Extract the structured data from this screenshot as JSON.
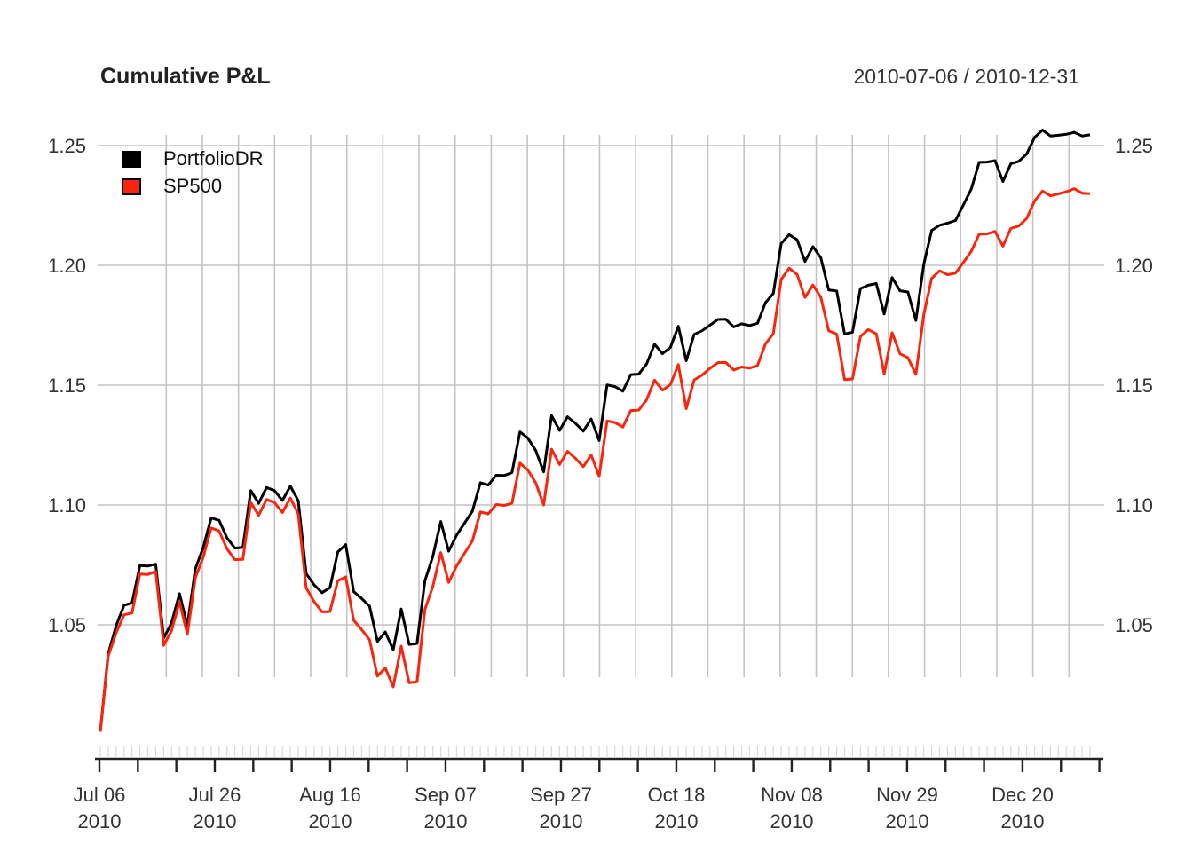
{
  "header": {
    "title": "Cumulative P&L",
    "date_range": "2010-07-06 / 2010-12-31"
  },
  "legend": [
    {
      "label": "PortfolioDR",
      "color": "#000000"
    },
    {
      "label": "SP500",
      "color": "#fa250c"
    }
  ],
  "y_axis": {
    "tick_labels": [
      "1.25",
      "1.20",
      "1.15",
      "1.10",
      "1.05"
    ],
    "tick_values": [
      1.25,
      1.2,
      1.15,
      1.1,
      1.05
    ]
  },
  "x_axis": {
    "labels_line1": [
      "Jul 06",
      "Jul 26",
      "Aug 16",
      "Sep 07",
      "Sep 27",
      "Oct 18",
      "Nov 08",
      "Nov 29",
      "Dec 20"
    ],
    "labels_line2": [
      "2010",
      "2010",
      "2010",
      "2010",
      "2010",
      "2010",
      "2010",
      "2010",
      "2010"
    ]
  },
  "chart_data": {
    "type": "line",
    "title": "Cumulative P&L",
    "subtitle": "2010-07-06 / 2010-12-31",
    "grid": true,
    "legend_position": "top-left",
    "ylim": [
      0.994,
      1.258
    ],
    "y_ticks": [
      1.05,
      1.1,
      1.15,
      1.2,
      1.25
    ],
    "x_label_positions": [
      0,
      14,
      29,
      44,
      58,
      73,
      88,
      103,
      117
    ],
    "x": [
      "2010-07-06",
      "2010-07-07",
      "2010-07-08",
      "2010-07-09",
      "2010-07-12",
      "2010-07-13",
      "2010-07-14",
      "2010-07-15",
      "2010-07-16",
      "2010-07-19",
      "2010-07-20",
      "2010-07-21",
      "2010-07-22",
      "2010-07-23",
      "2010-07-26",
      "2010-07-27",
      "2010-07-28",
      "2010-07-29",
      "2010-07-30",
      "2010-08-02",
      "2010-08-03",
      "2010-08-04",
      "2010-08-05",
      "2010-08-06",
      "2010-08-09",
      "2010-08-10",
      "2010-08-11",
      "2010-08-12",
      "2010-08-13",
      "2010-08-16",
      "2010-08-17",
      "2010-08-18",
      "2010-08-19",
      "2010-08-20",
      "2010-08-23",
      "2010-08-24",
      "2010-08-25",
      "2010-08-26",
      "2010-08-27",
      "2010-08-30",
      "2010-08-31",
      "2010-09-01",
      "2010-09-02",
      "2010-09-03",
      "2010-09-07",
      "2010-09-08",
      "2010-09-09",
      "2010-09-10",
      "2010-09-13",
      "2010-09-14",
      "2010-09-15",
      "2010-09-16",
      "2010-09-17",
      "2010-09-20",
      "2010-09-21",
      "2010-09-22",
      "2010-09-23",
      "2010-09-24",
      "2010-09-27",
      "2010-09-28",
      "2010-09-29",
      "2010-09-30",
      "2010-10-01",
      "2010-10-04",
      "2010-10-05",
      "2010-10-06",
      "2010-10-07",
      "2010-10-08",
      "2010-10-11",
      "2010-10-12",
      "2010-10-13",
      "2010-10-14",
      "2010-10-15",
      "2010-10-18",
      "2010-10-19",
      "2010-10-20",
      "2010-10-21",
      "2010-10-22",
      "2010-10-25",
      "2010-10-26",
      "2010-10-27",
      "2010-10-28",
      "2010-10-29",
      "2010-11-01",
      "2010-11-02",
      "2010-11-03",
      "2010-11-04",
      "2010-11-05",
      "2010-11-08",
      "2010-11-09",
      "2010-11-10",
      "2010-11-11",
      "2010-11-12",
      "2010-11-15",
      "2010-11-16",
      "2010-11-17",
      "2010-11-18",
      "2010-11-19",
      "2010-11-22",
      "2010-11-23",
      "2010-11-24",
      "2010-11-26",
      "2010-11-29",
      "2010-11-30",
      "2010-12-01",
      "2010-12-02",
      "2010-12-03",
      "2010-12-06",
      "2010-12-07",
      "2010-12-08",
      "2010-12-09",
      "2010-12-10",
      "2010-12-13",
      "2010-12-14",
      "2010-12-15",
      "2010-12-16",
      "2010-12-17",
      "2010-12-20",
      "2010-12-21",
      "2010-12-22",
      "2010-12-23",
      "2010-12-27",
      "2010-12-28",
      "2010-12-29",
      "2010-12-30",
      "2010-12-31"
    ],
    "series": [
      {
        "name": "PortfolioDR",
        "color": "#000000",
        "values": [
          1.0054,
          1.0379,
          1.0496,
          1.0582,
          1.0591,
          1.0747,
          1.0745,
          1.0753,
          1.0444,
          1.0508,
          1.063,
          1.0496,
          1.0733,
          1.0823,
          1.0946,
          1.0936,
          1.0863,
          1.082,
          1.0823,
          1.106,
          1.1007,
          1.1073,
          1.106,
          1.1019,
          1.1079,
          1.1018,
          1.0714,
          1.0667,
          1.0634,
          1.0655,
          1.0804,
          1.0835,
          1.0639,
          1.061,
          1.0578,
          1.0431,
          1.047,
          1.0396,
          1.0566,
          1.0418,
          1.0422,
          1.0684,
          1.0785,
          1.0931,
          1.0807,
          1.0874,
          1.0924,
          1.0974,
          1.1093,
          1.1083,
          1.1124,
          1.1123,
          1.1135,
          1.1305,
          1.1279,
          1.1227,
          1.1138,
          1.1373,
          1.1311,
          1.1368,
          1.1341,
          1.1308,
          1.1359,
          1.1269,
          1.1501,
          1.1494,
          1.1475,
          1.1544,
          1.1546,
          1.1589,
          1.1671,
          1.1631,
          1.1657,
          1.1746,
          1.1602,
          1.1712,
          1.1727,
          1.175,
          1.1774,
          1.1775,
          1.1743,
          1.1756,
          1.1749,
          1.1758,
          1.1844,
          1.1883,
          1.2091,
          1.2128,
          1.2107,
          1.2016,
          1.2078,
          1.2032,
          1.1897,
          1.1893,
          1.1713,
          1.1721,
          1.1903,
          1.1917,
          1.1924,
          1.1797,
          1.1949,
          1.1894,
          1.1889,
          1.177,
          1.2004,
          1.2146,
          1.2167,
          1.2176,
          1.2187,
          1.2252,
          1.2318,
          1.243,
          1.2431,
          1.2437,
          1.235,
          1.2424,
          1.2434,
          1.2465,
          1.2534,
          1.2565,
          1.254,
          1.2543,
          1.2547,
          1.2555,
          1.254,
          1.2545
        ]
      },
      {
        "name": "SP500",
        "color": "#fa250c",
        "values": [
          1.0054,
          1.0369,
          1.0466,
          1.0542,
          1.0549,
          1.0712,
          1.071,
          1.0723,
          1.0414,
          1.0476,
          1.0596,
          1.046,
          1.0695,
          1.0783,
          1.0904,
          1.0892,
          1.0817,
          1.0772,
          1.0773,
          1.101,
          1.0957,
          1.1023,
          1.101,
          1.0969,
          1.1029,
          1.0963,
          1.0654,
          1.0597,
          1.0554,
          1.0555,
          1.0684,
          1.07,
          1.0519,
          1.048,
          1.0438,
          1.0286,
          1.032,
          1.0241,
          1.0411,
          1.0258,
          1.0262,
          1.0564,
          1.066,
          1.0801,
          1.0677,
          1.0746,
          1.0798,
          1.085,
          1.0971,
          1.0963,
          1.1002,
          1.0998,
          1.1007,
          1.1175,
          1.1146,
          1.1092,
          1.1,
          1.1233,
          1.1169,
          1.1224,
          1.1195,
          1.116,
          1.1209,
          1.1119,
          1.1351,
          1.1344,
          1.1325,
          1.1394,
          1.1396,
          1.1439,
          1.1521,
          1.1479,
          1.1502,
          1.1586,
          1.1402,
          1.1522,
          1.1542,
          1.157,
          1.1594,
          1.1595,
          1.1563,
          1.1576,
          1.1571,
          1.1582,
          1.1672,
          1.1715,
          1.1941,
          1.1988,
          1.1962,
          1.1866,
          1.1918,
          1.1867,
          1.1727,
          1.1713,
          1.1523,
          1.1526,
          1.1703,
          1.1732,
          1.1714,
          1.1547,
          1.1719,
          1.1631,
          1.1615,
          1.1545,
          1.1794,
          1.1946,
          1.1977,
          1.1961,
          1.1967,
          1.2012,
          1.2058,
          1.213,
          1.2131,
          1.2142,
          1.208,
          1.2154,
          1.2164,
          1.2195,
          1.2269,
          1.231,
          1.229,
          1.2298,
          1.2307,
          1.232,
          1.2301,
          1.2299
        ]
      }
    ]
  },
  "style": {
    "grid_color": "#c4c4c4",
    "axis_color": "#222222",
    "minor_tick_color": "#d9d9d9",
    "label_color": "#333333"
  }
}
